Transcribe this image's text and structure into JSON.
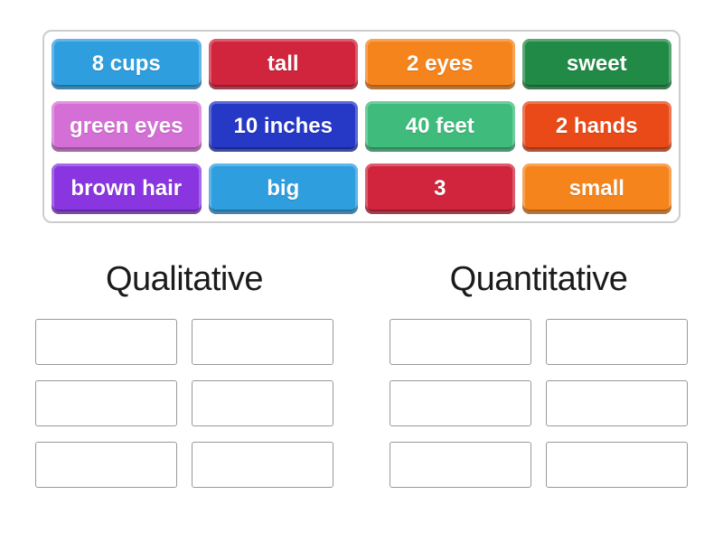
{
  "activity": {
    "type_label": "group-sort"
  },
  "tray": {
    "tiles": [
      {
        "label": "8 cups",
        "color": "#2E9EDF"
      },
      {
        "label": "tall",
        "color": "#D0253C"
      },
      {
        "label": "2 eyes",
        "color": "#F5841D"
      },
      {
        "label": "sweet",
        "color": "#218A46"
      },
      {
        "label": "green eyes",
        "color": "#D46FD6"
      },
      {
        "label": "10 inches",
        "color": "#2638C6"
      },
      {
        "label": "40 feet",
        "color": "#3FBC7C"
      },
      {
        "label": "2 hands",
        "color": "#E94A18"
      },
      {
        "label": "brown hair",
        "color": "#8A36E0"
      },
      {
        "label": "big",
        "color": "#2E9EDF"
      },
      {
        "label": "3",
        "color": "#D0253C"
      },
      {
        "label": "small",
        "color": "#F5841D"
      }
    ]
  },
  "groups": [
    {
      "title": "Qualitative",
      "slot_count": 6
    },
    {
      "title": "Quantitative",
      "slot_count": 6
    }
  ],
  "colors": {
    "tray_border": "#cccccc",
    "slot_border": "#999999",
    "title_text": "#1b1b1b",
    "tile_text": "#ffffff",
    "background": "#ffffff"
  }
}
